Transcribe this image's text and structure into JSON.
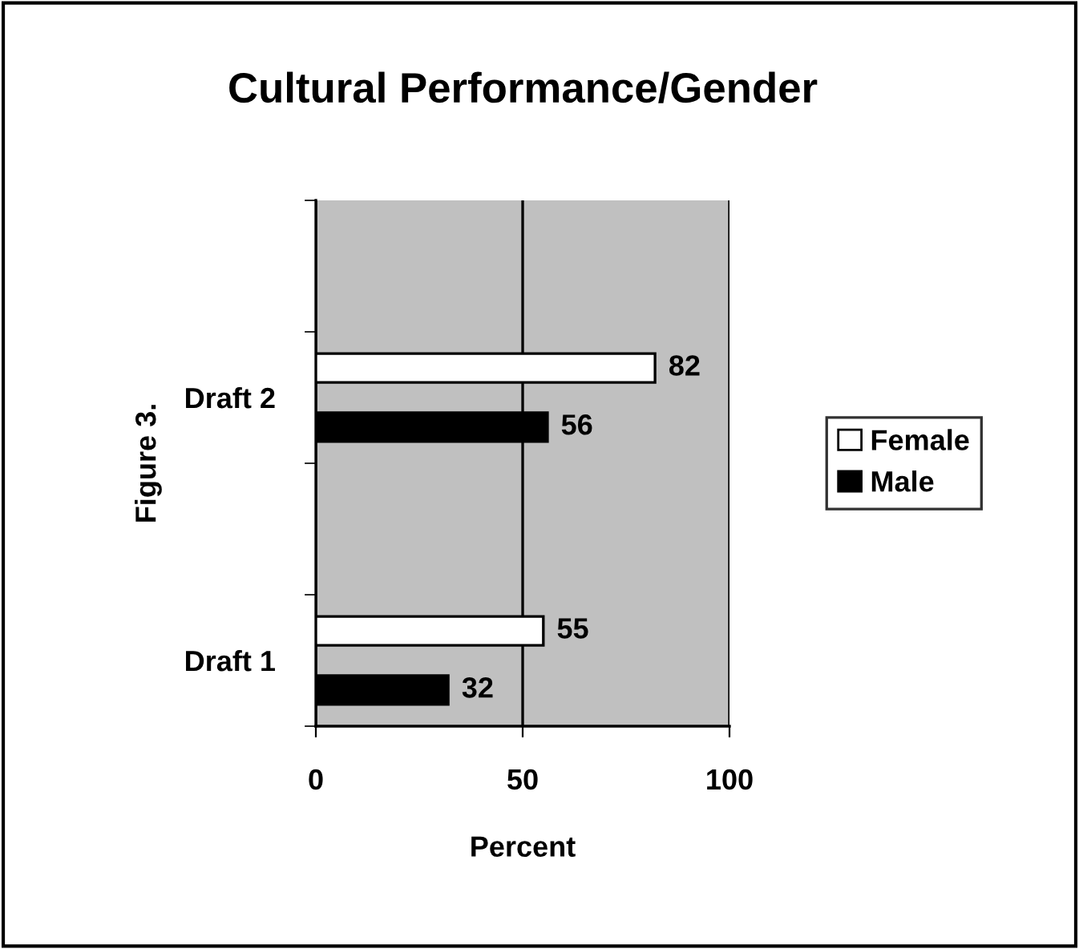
{
  "chart_data": {
    "type": "bar",
    "orientation": "horizontal",
    "title": "Cultural Performance/Gender",
    "xlabel": "Percent",
    "ylabel": "Figure 3.",
    "categories": [
      "Draft 2",
      "Draft 1"
    ],
    "series": [
      {
        "name": "Female",
        "color": "#ffffff",
        "values": [
          82,
          55
        ]
      },
      {
        "name": "Male",
        "color": "#000000",
        "values": [
          56,
          32
        ]
      }
    ],
    "xlim": [
      0,
      100
    ],
    "xticks": [
      0,
      50,
      100
    ],
    "grid": "x",
    "legend": "right",
    "data_labels": true
  }
}
